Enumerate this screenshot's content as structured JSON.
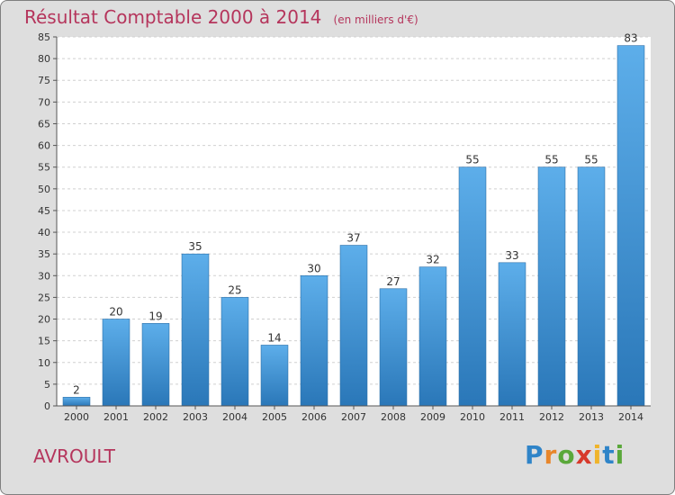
{
  "header": {
    "title": "Résultat Comptable 2000 à 2014",
    "unit": "(en milliers d'€)"
  },
  "footer": {
    "commune": "AVROULT",
    "logo": "Proxiti"
  },
  "colors": {
    "title": "#b5355c",
    "bar_top": "#5daeea",
    "bar_bottom": "#2a77b8",
    "plot_bg": "#ffffff",
    "frame_bg": "#dedede"
  },
  "chart_data": {
    "type": "bar",
    "categories": [
      "2000",
      "2001",
      "2002",
      "2003",
      "2004",
      "2005",
      "2006",
      "2007",
      "2008",
      "2009",
      "2010",
      "2011",
      "2012",
      "2013",
      "2014"
    ],
    "values": [
      2,
      20,
      19,
      35,
      25,
      14,
      30,
      37,
      27,
      32,
      55,
      33,
      55,
      55,
      83
    ],
    "ylim": [
      0,
      85
    ],
    "yticks": [
      0,
      5,
      10,
      15,
      20,
      25,
      30,
      35,
      40,
      45,
      50,
      55,
      60,
      65,
      70,
      75,
      80,
      85
    ],
    "grid": true,
    "data_labels": true
  }
}
